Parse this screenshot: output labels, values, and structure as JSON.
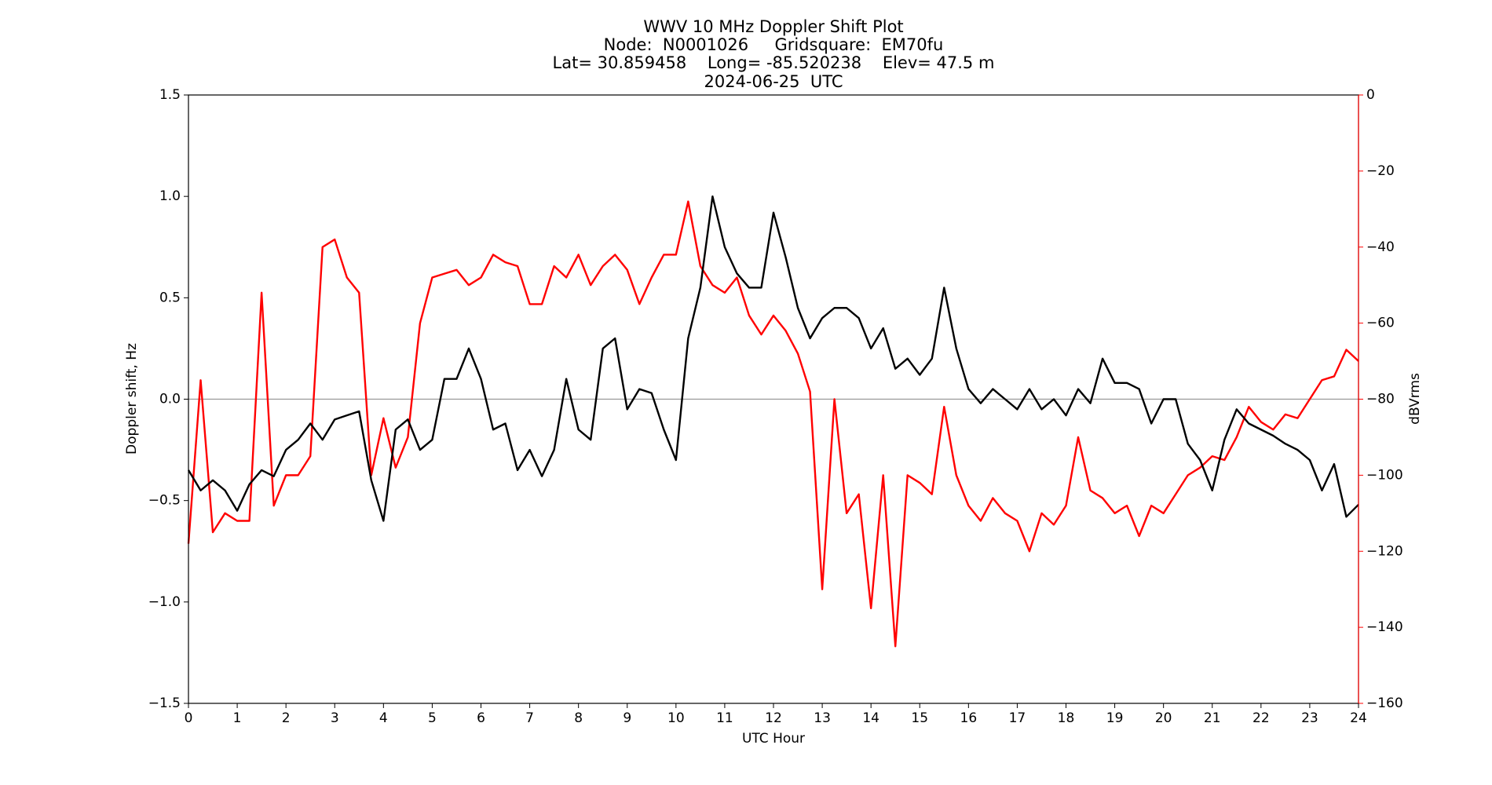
{
  "chart_data": {
    "type": "line",
    "title": [
      "WWV 10 MHz Doppler Shift Plot",
      "Node:  N0001026     Gridsquare:  EM70fu",
      "Lat= 30.859458    Long= -85.520238    Elev= 47.5 m",
      "2024-06-25  UTC"
    ],
    "xlabel": "UTC Hour",
    "ylabel": "Doppler shift, Hz",
    "y2label": "dBVrms",
    "y2color": "#ff0000",
    "xlim": [
      0,
      24
    ],
    "xticks": [
      0,
      1,
      2,
      3,
      4,
      5,
      6,
      7,
      8,
      9,
      10,
      11,
      12,
      13,
      14,
      15,
      16,
      17,
      18,
      19,
      20,
      21,
      22,
      23,
      24
    ],
    "ylim": [
      -1.5,
      1.5
    ],
    "yticks": [
      {
        "value": -1.5,
        "label": "−1.5"
      },
      {
        "value": -1.0,
        "label": "−1.0"
      },
      {
        "value": -0.5,
        "label": "−0.5"
      },
      {
        "value": 0,
        "label": "0.0"
      },
      0.5,
      {
        "value": 1.0,
        "label": "1.0"
      },
      1.5
    ],
    "y2lim": [
      -160,
      0
    ],
    "y2ticks": [
      {
        "value": -160,
        "label": "−160"
      },
      {
        "value": -140,
        "label": "−140"
      },
      {
        "value": -120,
        "label": "−120"
      },
      {
        "value": -100,
        "label": "−100"
      },
      {
        "value": -80,
        "label": "−80"
      },
      {
        "value": -60,
        "label": "−60"
      },
      {
        "value": -40,
        "label": "−40"
      },
      {
        "value": -20,
        "label": "−20"
      },
      0
    ],
    "zero_line": 0,
    "x": [
      0,
      0.25,
      0.5,
      0.75,
      1,
      1.25,
      1.5,
      1.75,
      2,
      2.25,
      2.5,
      2.75,
      3,
      3.25,
      3.5,
      3.75,
      4,
      4.25,
      4.5,
      4.75,
      5,
      5.25,
      5.5,
      5.75,
      6,
      6.25,
      6.5,
      6.75,
      7,
      7.25,
      7.5,
      7.75,
      8,
      8.25,
      8.5,
      8.75,
      9,
      9.25,
      9.5,
      9.75,
      10,
      10.25,
      10.5,
      10.75,
      11,
      11.25,
      11.5,
      11.75,
      12,
      12.25,
      12.5,
      12.75,
      13,
      13.25,
      13.5,
      13.75,
      14,
      14.25,
      14.5,
      14.75,
      15,
      15.25,
      15.5,
      15.75,
      16,
      16.25,
      16.5,
      16.75,
      17,
      17.25,
      17.5,
      17.75,
      18,
      18.25,
      18.5,
      18.75,
      19,
      19.25,
      19.5,
      19.75,
      20,
      20.25,
      20.5,
      20.75,
      21,
      21.25,
      21.5,
      21.75,
      22,
      22.25,
      22.5,
      22.75,
      23,
      23.25,
      23.5,
      23.75,
      24
    ],
    "series": [
      {
        "color": "#000000",
        "axis": "y",
        "values": [
          -0.35,
          -0.45,
          -0.4,
          -0.45,
          -0.55,
          -0.42,
          -0.35,
          -0.38,
          -0.25,
          -0.2,
          -0.12,
          -0.2,
          -0.1,
          -0.08,
          -0.06,
          -0.4,
          -0.6,
          -0.15,
          -0.1,
          -0.25,
          -0.2,
          0.1,
          0.1,
          0.25,
          0.1,
          -0.15,
          -0.12,
          -0.35,
          -0.25,
          -0.38,
          -0.25,
          0.1,
          -0.15,
          -0.2,
          0.25,
          0.3,
          -0.05,
          0.05,
          0.03,
          -0.15,
          -0.3,
          0.3,
          0.55,
          1.0,
          0.75,
          0.62,
          0.55,
          0.55,
          0.92,
          0.7,
          0.45,
          0.3,
          0.4,
          0.45,
          0.45,
          0.4,
          0.25,
          0.35,
          0.15,
          0.2,
          0.12,
          0.2,
          0.55,
          0.25,
          0.05,
          -0.02,
          0.05,
          0,
          -0.05,
          0.05,
          -0.05,
          0,
          -0.08,
          0.05,
          -0.02,
          0.2,
          0.08,
          0.08,
          0.05,
          -0.12,
          0,
          0,
          -0.22,
          -0.3,
          -0.45,
          -0.2,
          -0.05,
          -0.12,
          -0.15,
          -0.18,
          -0.22,
          -0.25,
          -0.3,
          -0.45,
          -0.32,
          -0.58,
          -0.52
        ]
      },
      {
        "color": "#ff0000",
        "axis": "y2",
        "values": [
          -118,
          -75,
          -115,
          -110,
          -112,
          -112,
          -52,
          -108,
          -100,
          -100,
          -95,
          -40,
          -38,
          -48,
          -52,
          -100,
          -85,
          -98,
          -90,
          -60,
          -48,
          -47,
          -46,
          -50,
          -48,
          -42,
          -44,
          -45,
          -55,
          -55,
          -45,
          -48,
          -42,
          -50,
          -45,
          -42,
          -46,
          -55,
          -48,
          -42,
          -42,
          -28,
          -45,
          -50,
          -52,
          -48,
          -58,
          -63,
          -58,
          -62,
          -68,
          -78,
          -130,
          -80,
          -110,
          -105,
          -135,
          -100,
          -145,
          -100,
          -102,
          -105,
          -82,
          -100,
          -108,
          -112,
          -106,
          -110,
          -112,
          -120,
          -110,
          -113,
          -108,
          -90,
          -104,
          -106,
          -110,
          -108,
          -116,
          -108,
          -110,
          -105,
          -100,
          -98,
          -95,
          -96,
          -90,
          -82,
          -86,
          -88,
          -84,
          -85,
          -80,
          -75,
          -74,
          -67,
          -70
        ]
      }
    ]
  }
}
